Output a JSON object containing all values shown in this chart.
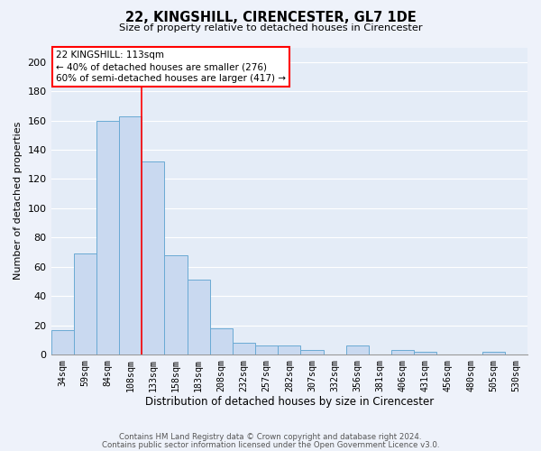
{
  "title": "22, KINGSHILL, CIRENCESTER, GL7 1DE",
  "subtitle": "Size of property relative to detached houses in Cirencester",
  "xlabel": "Distribution of detached houses by size in Cirencester",
  "ylabel": "Number of detached properties",
  "bar_labels": [
    "34sqm",
    "59sqm",
    "84sqm",
    "108sqm",
    "133sqm",
    "158sqm",
    "183sqm",
    "208sqm",
    "232sqm",
    "257sqm",
    "282sqm",
    "307sqm",
    "332sqm",
    "356sqm",
    "381sqm",
    "406sqm",
    "431sqm",
    "456sqm",
    "480sqm",
    "505sqm",
    "530sqm"
  ],
  "bar_heights": [
    17,
    69,
    160,
    163,
    132,
    68,
    51,
    18,
    8,
    6,
    6,
    3,
    0,
    6,
    0,
    3,
    2,
    0,
    0,
    2,
    0
  ],
  "bar_color": "#c9d9f0",
  "bar_edge_color": "#6aaad4",
  "ylim": [
    0,
    210
  ],
  "yticks": [
    0,
    20,
    40,
    60,
    80,
    100,
    120,
    140,
    160,
    180,
    200
  ],
  "property_label": "22 KINGSHILL: 113sqm",
  "annotation_line1": "← 40% of detached houses are smaller (276)",
  "annotation_line2": "60% of semi-detached houses are larger (417) →",
  "vline_position": 3.5,
  "footer_line1": "Contains HM Land Registry data © Crown copyright and database right 2024.",
  "footer_line2": "Contains public sector information licensed under the Open Government Licence v3.0.",
  "background_color": "#eef2fa",
  "plot_bg_color": "#e4ecf7"
}
